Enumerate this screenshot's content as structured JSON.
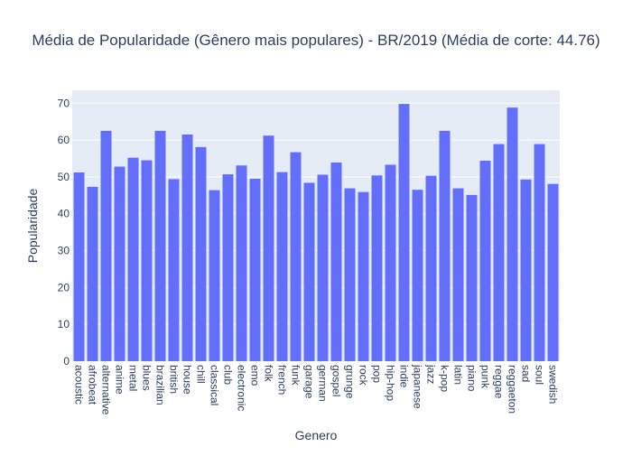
{
  "chart_data": {
    "type": "bar",
    "title": "Média de Popularidade (Gênero mais populares) - BR/2019 (Média de corte: 44.76)",
    "xlabel": "Genero",
    "ylabel": "Popularidade",
    "ylim": [
      0,
      73.5
    ],
    "yticks": [
      0,
      10,
      20,
      30,
      40,
      50,
      60,
      70
    ],
    "grid": true,
    "legend": "none",
    "bar_color": "#636efa",
    "plot_bg": "#e5ecf6",
    "categories": [
      "acoustic",
      "afrobeat",
      "alternative",
      "anime",
      "metal",
      "blues",
      "brazilian",
      "british",
      "house",
      "chill",
      "classical",
      "club",
      "electronic",
      "emo",
      "folk",
      "french",
      "funk",
      "garage",
      "german",
      "gospel",
      "grunge",
      "rock",
      "pop",
      "hip-hop",
      "indie",
      "japanese",
      "jazz",
      "k-pop",
      "latin",
      "piano",
      "punk",
      "reggae",
      "reggaeton",
      "sad",
      "soul",
      "swedish"
    ],
    "values": [
      51.2,
      47.3,
      62.5,
      52.8,
      55.2,
      54.5,
      62.5,
      49.4,
      61.5,
      58.1,
      46.4,
      50.7,
      53.1,
      49.5,
      61.2,
      51.3,
      56.7,
      48.4,
      50.6,
      53.9,
      46.9,
      45.9,
      50.4,
      53.3,
      69.8,
      46.5,
      50.3,
      62.5,
      46.9,
      45.1,
      54.4,
      58.9,
      68.8,
      49.3,
      58.9,
      48.1
    ]
  }
}
